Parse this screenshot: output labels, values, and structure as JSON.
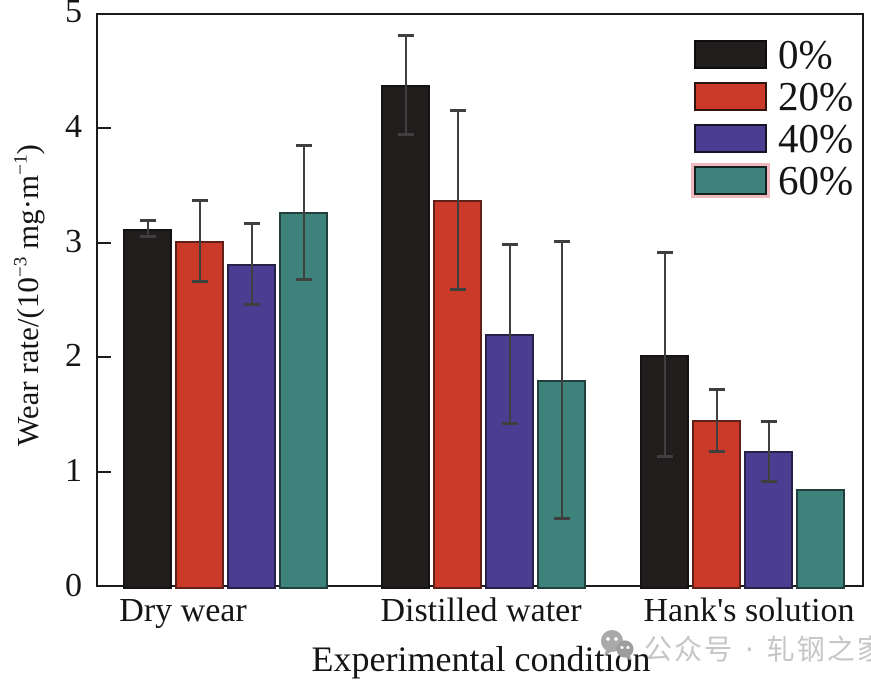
{
  "figure": {
    "watermark": {
      "icon": "wechat-icon",
      "text": "公众号 · 轧钢之家"
    }
  },
  "chart_data": {
    "type": "bar",
    "title": "",
    "xlabel": "Experimental condition",
    "ylabel": "Wear rate/(10⁻³ mg·m⁻¹)",
    "ylabel_parts": {
      "prefix": "Wear rate/(10",
      "sup1": "−3",
      "mid": " mg·m",
      "sup2": "−1",
      "suffix": ")"
    },
    "ylim": [
      0,
      5
    ],
    "yticks": [
      0,
      1,
      2,
      3,
      4,
      5
    ],
    "grid": false,
    "legend_position": "upper-right-inside",
    "categories": [
      "Dry wear",
      "Distilled water",
      "Hank's solution"
    ],
    "series": [
      {
        "name": "0%",
        "color": "#221d1d",
        "values": [
          3.14,
          4.39,
          2.04
        ],
        "errors": [
          0.07,
          0.43,
          0.89
        ]
      },
      {
        "name": "20%",
        "color": "#cb3a28",
        "values": [
          3.03,
          3.39,
          1.47
        ],
        "errors": [
          0.35,
          0.78,
          0.27
        ]
      },
      {
        "name": "40%",
        "color": "#4b3e92",
        "values": [
          2.83,
          2.22,
          1.2
        ],
        "errors": [
          0.35,
          0.78,
          0.26
        ]
      },
      {
        "name": "60%",
        "color": "#3e837b",
        "values": [
          3.28,
          1.82,
          0.87
        ],
        "errors": [
          0.58,
          1.21,
          0
        ],
        "legend_highlight": "#f0b9bd"
      }
    ],
    "error_color": "#3f3f3f",
    "axis_color": "#1b1b1b"
  }
}
